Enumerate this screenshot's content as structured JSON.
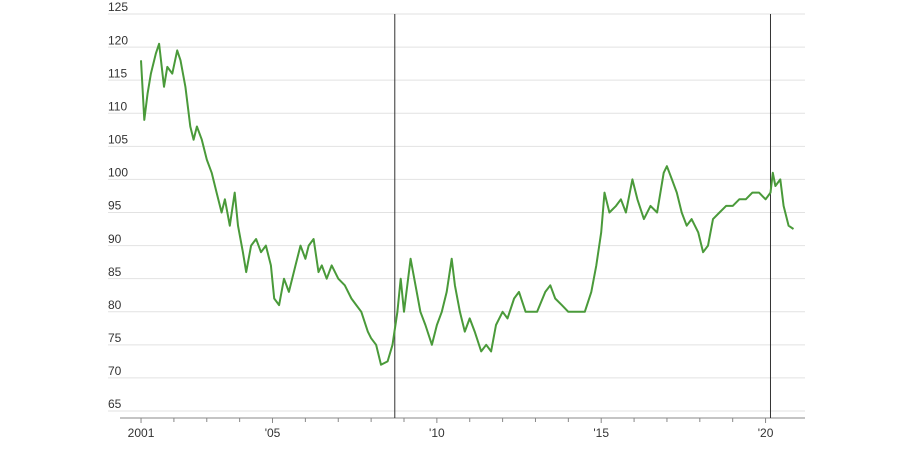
{
  "chart_data": {
    "type": "line",
    "x": [
      2001.0,
      2001.1,
      2001.2,
      2001.3,
      2001.45,
      2001.55,
      2001.7,
      2001.8,
      2001.95,
      2002.1,
      2002.2,
      2002.35,
      2002.5,
      2002.6,
      2002.7,
      2002.85,
      2003.0,
      2003.15,
      2003.3,
      2003.45,
      2003.55,
      2003.7,
      2003.85,
      2003.95,
      2004.1,
      2004.2,
      2004.35,
      2004.5,
      2004.65,
      2004.8,
      2004.95,
      2005.05,
      2005.2,
      2005.35,
      2005.5,
      2005.7,
      2005.85,
      2006.0,
      2006.1,
      2006.25,
      2006.4,
      2006.5,
      2006.65,
      2006.8,
      2007.0,
      2007.2,
      2007.4,
      2007.55,
      2007.7,
      2007.9,
      2008.0,
      2008.15,
      2008.3,
      2008.5,
      2008.65,
      2008.8,
      2008.9,
      2009.0,
      2009.2,
      2009.35,
      2009.5,
      2009.65,
      2009.85,
      2010.0,
      2010.15,
      2010.3,
      2010.45,
      2010.55,
      2010.7,
      2010.85,
      2011.0,
      2011.15,
      2011.35,
      2011.5,
      2011.65,
      2011.8,
      2012.0,
      2012.15,
      2012.35,
      2012.5,
      2012.7,
      2012.9,
      2013.05,
      2013.3,
      2013.45,
      2013.6,
      2013.8,
      2014.0,
      2014.3,
      2014.5,
      2014.7,
      2014.85,
      2015.0,
      2015.1,
      2015.25,
      2015.45,
      2015.6,
      2015.75,
      2015.95,
      2016.1,
      2016.3,
      2016.5,
      2016.7,
      2016.9,
      2017.0,
      2017.15,
      2017.3,
      2017.45,
      2017.6,
      2017.75,
      2017.95,
      2018.1,
      2018.25,
      2018.4,
      2018.6,
      2018.8,
      2019.0,
      2019.2,
      2019.4,
      2019.6,
      2019.8,
      2020.0,
      2020.15,
      2020.22,
      2020.3,
      2020.45,
      2020.55,
      2020.7,
      2020.85
    ],
    "series": [
      {
        "color": "#4a9a3a",
        "values": [
          118,
          109,
          113,
          116,
          119,
          120.5,
          114,
          117,
          116,
          119.5,
          118,
          114,
          108,
          106,
          108,
          106,
          103,
          101,
          98,
          95,
          97,
          93,
          98,
          93,
          89,
          86,
          90,
          91,
          89,
          90,
          87,
          82,
          81,
          85,
          83,
          87,
          90,
          88,
          90,
          91,
          86,
          87,
          85,
          87,
          85,
          84,
          82,
          81,
          80,
          77,
          76,
          75,
          72,
          72.5,
          75,
          80,
          85,
          80,
          88,
          84,
          80,
          78,
          75,
          78,
          80,
          83,
          88,
          84,
          80,
          77,
          79,
          77,
          74,
          75,
          74,
          78,
          80,
          79,
          82,
          83,
          80,
          80,
          80,
          83,
          84,
          82,
          81,
          80,
          80,
          80,
          83,
          87,
          92,
          98,
          95,
          96,
          97,
          95,
          100,
          97,
          94,
          96,
          95,
          101,
          102,
          100,
          98,
          95,
          93,
          94,
          92,
          89,
          90,
          94,
          95,
          96,
          96,
          97,
          97,
          98,
          98,
          97,
          98,
          101,
          99,
          100,
          96,
          93,
          92.5
        ]
      }
    ],
    "xlim": [
      2000.36,
      2021.2
    ],
    "xticks": [
      2001,
      {
        "value": 2005,
        "label": "'05"
      },
      {
        "value": 2010,
        "label": "'10"
      },
      {
        "value": 2015,
        "label": "'15"
      },
      {
        "value": 2020,
        "label": "'20"
      }
    ],
    "xminorticks": [
      2002,
      2003,
      2004,
      2006,
      2007,
      2008,
      2009,
      2011,
      2012,
      2013,
      2014,
      2016,
      2017,
      2018,
      2019
    ],
    "ylim": [
      65,
      125
    ],
    "yticks": [
      65,
      70,
      75,
      80,
      85,
      90,
      95,
      100,
      105,
      110,
      115,
      120,
      125
    ],
    "vlines": [
      2008.72,
      2020.15
    ],
    "grid": true
  }
}
